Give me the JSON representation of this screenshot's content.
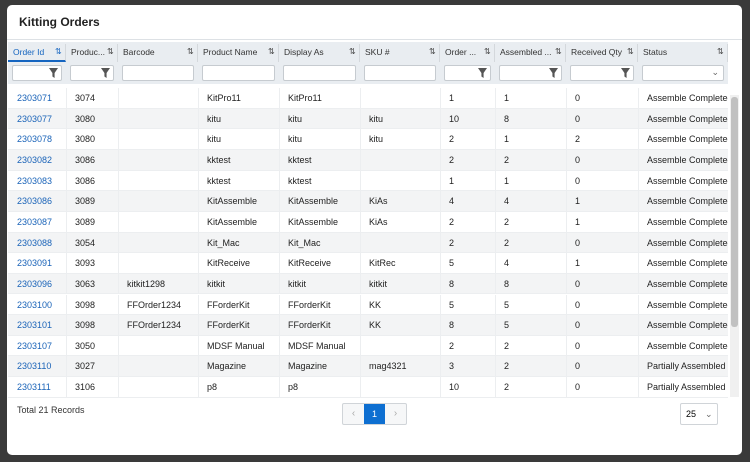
{
  "title": "Kitting Orders",
  "table": {
    "columns": [
      "Order Id",
      "Produc...",
      "Barcode",
      "Product Name",
      "Display As",
      "SKU #",
      "Order ...",
      "Assembled ...",
      "Received Qty",
      "Status"
    ],
    "rows": [
      [
        "2303071",
        "3074",
        null,
        "KitPro11",
        "KitPro11",
        null,
        "1",
        "1",
        "0",
        "Assemble Completed"
      ],
      [
        "2303077",
        "3080",
        null,
        "kitu",
        "kitu",
        "kitu",
        "10",
        "8",
        "0",
        "Assemble Completed"
      ],
      [
        "2303078",
        "3080",
        null,
        "kitu",
        "kitu",
        "kitu",
        "2",
        "1",
        "2",
        "Assemble Completed"
      ],
      [
        "2303082",
        "3086",
        null,
        "kktest",
        "kktest",
        null,
        "2",
        "2",
        "0",
        "Assemble Completed"
      ],
      [
        "2303083",
        "3086",
        null,
        "kktest",
        "kktest",
        null,
        "1",
        "1",
        "0",
        "Assemble Completed"
      ],
      [
        "2303086",
        "3089",
        null,
        "KitAssemble",
        "KitAssemble",
        "KiAs",
        "4",
        "4",
        "1",
        "Assemble Completed"
      ],
      [
        "2303087",
        "3089",
        null,
        "KitAssemble",
        "KitAssemble",
        "KiAs",
        "2",
        "2",
        "1",
        "Assemble Completed"
      ],
      [
        "2303088",
        "3054",
        null,
        "Kit_Mac",
        "Kit_Mac",
        null,
        "2",
        "2",
        "0",
        "Assemble Completed"
      ],
      [
        "2303091",
        "3093",
        null,
        "KitReceive",
        "KitReceive",
        "KitRec",
        "5",
        "4",
        "1",
        "Assemble Completed"
      ],
      [
        "2303096",
        "3063",
        "kitkit1298",
        "kitkit",
        "kitkit",
        "kitkit",
        "8",
        "8",
        "0",
        "Assemble Completed"
      ],
      [
        "2303100",
        "3098",
        "FFOrder1234",
        "FForderKit",
        "FForderKit",
        "KK",
        "5",
        "5",
        "0",
        "Assemble Completed"
      ],
      [
        "2303101",
        "3098",
        "FFOrder1234",
        "FForderKit",
        "FForderKit",
        "KK",
        "8",
        "5",
        "0",
        "Assemble Completed"
      ],
      [
        "2303107",
        "3050",
        null,
        "MDSF Manual",
        "MDSF Manual",
        null,
        "2",
        "2",
        "0",
        "Assemble Completed"
      ],
      [
        "2303110",
        "3027",
        null,
        "Magazine",
        "Magazine",
        "mag4321",
        "3",
        "2",
        "0",
        "Partially Assembled"
      ],
      [
        "2303111",
        "3106",
        null,
        "p8",
        "p8",
        null,
        "10",
        "2",
        "0",
        "Partially Assembled"
      ]
    ]
  },
  "footer": {
    "total": "Total 21 Records",
    "page": "1",
    "page_size": "25"
  }
}
